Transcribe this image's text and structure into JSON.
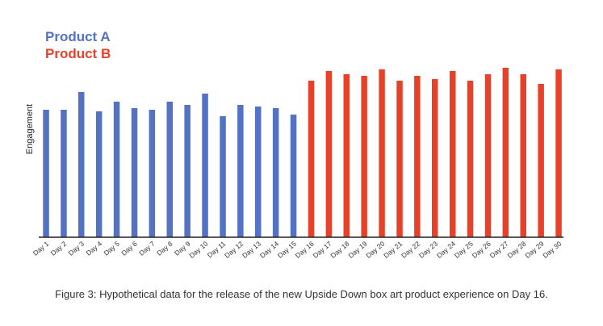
{
  "chart_data": {
    "type": "bar",
    "ylabel": "Engagement",
    "xlabel": "",
    "ylim": [
      0,
      100
    ],
    "grid": false,
    "legend_placement": "top-left",
    "categories": [
      "Day 1",
      "Day 2",
      "Day 3",
      "Day 4",
      "Day 5",
      "Day 6",
      "Day 7",
      "Day 8",
      "Day 9",
      "Day 10",
      "Day 11",
      "Day 12",
      "Day 13",
      "Day 14",
      "Day 15",
      "Day 16",
      "Day 17",
      "Day 18",
      "Day 19",
      "Day 20",
      "Day 21",
      "Day 22",
      "Day 23",
      "Day 24",
      "Day 25",
      "Day 26",
      "Day 27",
      "Day 28",
      "Day 29",
      "Day 30"
    ],
    "series": [
      {
        "name": "Product A",
        "color": "#5472c4",
        "values": [
          79,
          79,
          90,
          78,
          84,
          80,
          79,
          84,
          82,
          89,
          75,
          82,
          81,
          80,
          76,
          null,
          null,
          null,
          null,
          null,
          null,
          null,
          null,
          null,
          null,
          null,
          null,
          null,
          null,
          null
        ]
      },
      {
        "name": "Product B",
        "color": "#e8412a",
        "values": [
          null,
          null,
          null,
          null,
          null,
          null,
          null,
          null,
          null,
          null,
          null,
          null,
          null,
          null,
          null,
          97,
          103,
          101,
          100,
          104,
          97,
          100,
          98,
          103,
          97,
          101,
          105,
          101,
          95,
          104
        ]
      }
    ]
  },
  "caption": "Figure 3: Hypothetical data for the release of the new Upside Down box art product experience on Day 16."
}
